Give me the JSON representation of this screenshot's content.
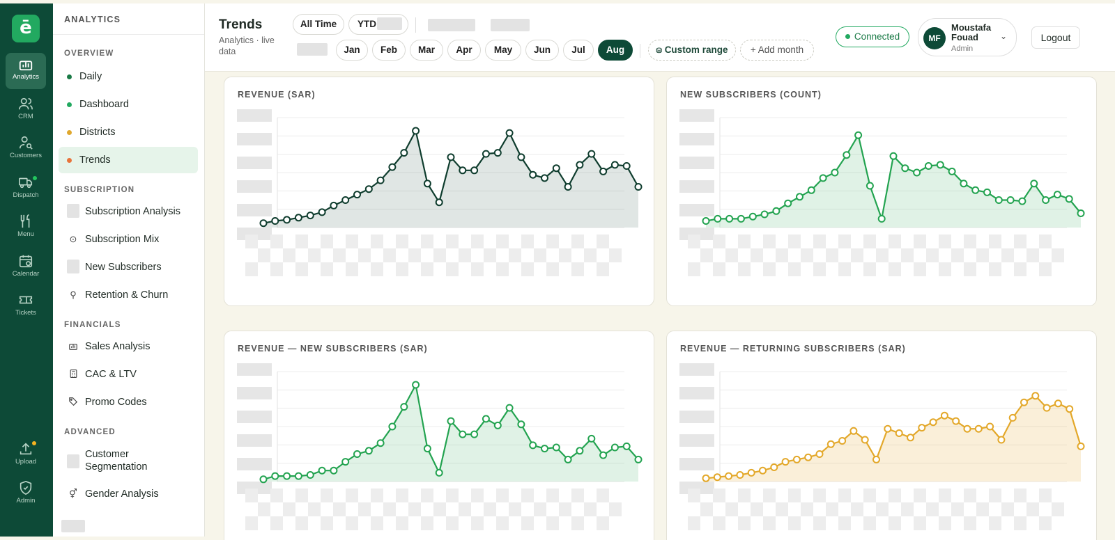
{
  "rail": {
    "logo": "ē",
    "items": [
      {
        "label": "Analytics",
        "icon": "bar-chart-icon"
      },
      {
        "label": "CRM",
        "icon": "users-icon"
      },
      {
        "label": "Customers",
        "icon": "user-search-icon"
      },
      {
        "label": "Dispatch",
        "icon": "truck-icon"
      },
      {
        "label": "Menu",
        "icon": "utensils-icon"
      },
      {
        "label": "Calendar",
        "icon": "calendar-icon"
      },
      {
        "label": "Tickets",
        "icon": "ticket-icon"
      },
      {
        "label": "Upload",
        "icon": "upload-icon"
      },
      {
        "label": "Admin",
        "icon": "shield-icon"
      }
    ],
    "dispatch_dot_color": "#22c55e",
    "upload_dot_color": "#f5b321"
  },
  "sidebar": {
    "title": "ANALYTICS",
    "sections": {
      "overview": "OVERVIEW",
      "subscription": "SUBSCRIPTION",
      "financials": "FINANCIALS",
      "advanced": "ADVANCED"
    },
    "overview_items": [
      {
        "label": "Daily",
        "dot": "#1a7a46"
      },
      {
        "label": "Dashboard",
        "dot": "#22a960"
      },
      {
        "label": "Districts",
        "dot": "#e0a82e"
      },
      {
        "label": "Trends",
        "dot": "#e8743b"
      }
    ],
    "subscription_items": [
      "Subscription Analysis",
      "Subscription Mix",
      "New Subscribers",
      "Retention & Churn"
    ],
    "financial_items": [
      "Sales Analysis",
      "CAC & LTV",
      "Promo Codes"
    ],
    "advanced_items": [
      "Customer Segmentation",
      "Gender Analysis"
    ]
  },
  "header": {
    "title": "Trends",
    "subtitle": "Analytics · live data",
    "all_time": "All Time",
    "ytd": "YTD",
    "months": [
      "Jan",
      "Feb",
      "Mar",
      "Apr",
      "May",
      "Jun",
      "Jul",
      "Aug"
    ],
    "active_month": "Aug",
    "custom_range": "Custom range",
    "add_month": "+ Add month",
    "status": "Connected",
    "user_initials": "MF",
    "user_name": "Moustafa Fouad",
    "user_role": "Admin",
    "logout": "Logout"
  },
  "colors": {
    "brand": "#0d4a37",
    "accent": "#22a960",
    "revenue": "#0f3d2e",
    "subscribers": "#23a350",
    "returning": "#e3a82a"
  },
  "chart_data": [
    {
      "type": "line",
      "title": "REVENUE (SAR)",
      "series": [
        {
          "values": [
            4,
            6,
            7,
            9,
            11,
            14,
            20,
            25,
            30,
            35,
            43,
            55,
            68,
            88,
            40,
            23,
            64,
            52,
            52,
            67,
            68,
            86,
            64,
            48,
            45,
            54,
            37,
            57,
            67,
            51,
            57,
            56,
            37
          ]
        }
      ]
    },
    {
      "type": "line",
      "title": "NEW SUBSCRIBERS (COUNT)",
      "series": [
        {
          "values": [
            6,
            8,
            8,
            8,
            10,
            12,
            15,
            22,
            28,
            34,
            45,
            50,
            66,
            84,
            38,
            8,
            65,
            54,
            50,
            56,
            57,
            51,
            40,
            34,
            32,
            25,
            25,
            24,
            40,
            25,
            30,
            26,
            13
          ]
        }
      ]
    },
    {
      "type": "line",
      "title": "REVENUE — NEW SUBSCRIBERS (SAR)",
      "series": [
        {
          "values": [
            2,
            5,
            5,
            5,
            6,
            10,
            10,
            18,
            25,
            28,
            35,
            50,
            68,
            88,
            30,
            8,
            55,
            43,
            43,
            57,
            51,
            67,
            52,
            33,
            30,
            31,
            20,
            28,
            39,
            24,
            31,
            32,
            20
          ]
        }
      ]
    },
    {
      "type": "line",
      "title": "REVENUE — RETURNING SUBSCRIBERS (SAR)",
      "series": [
        {
          "values": [
            3,
            4,
            5,
            6,
            8,
            10,
            13,
            18,
            20,
            22,
            25,
            34,
            37,
            46,
            38,
            20,
            48,
            44,
            40,
            49,
            54,
            60,
            55,
            48,
            48,
            50,
            38,
            58,
            72,
            78,
            67,
            71,
            66,
            32
          ]
        }
      ]
    }
  ]
}
